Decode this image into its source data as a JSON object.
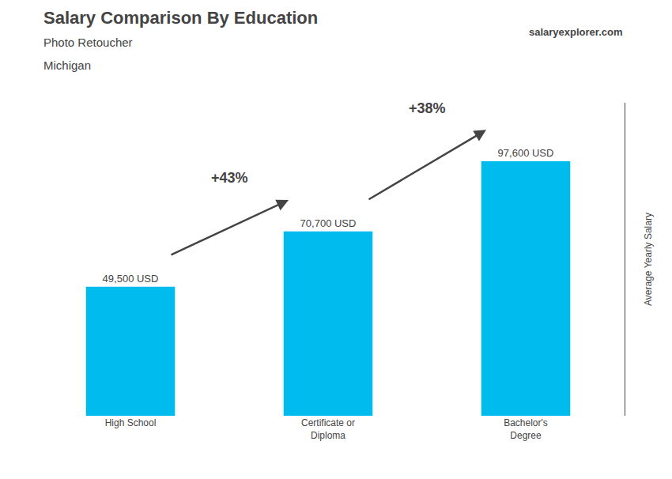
{
  "chart_data": {
    "type": "bar",
    "title": "Salary Comparison By Education",
    "subtitle": [
      "Photo Retoucher",
      "Michigan"
    ],
    "categories": [
      "High School",
      "Certificate or\nDiploma",
      "Bachelor's\nDegree"
    ],
    "values": [
      49500,
      70700,
      97600
    ],
    "value_labels": [
      "49,500 USD",
      "70,700 USD",
      "97,600 USD"
    ],
    "data_labels": true,
    "color": "#00bbee",
    "ylabel": "Average Yearly Salary",
    "ylim": [
      0,
      120000
    ],
    "tick_labels": "x",
    "grid": false,
    "annotations": [
      "+43%",
      "+38%",
      "salaryexplorer.com"
    ]
  }
}
